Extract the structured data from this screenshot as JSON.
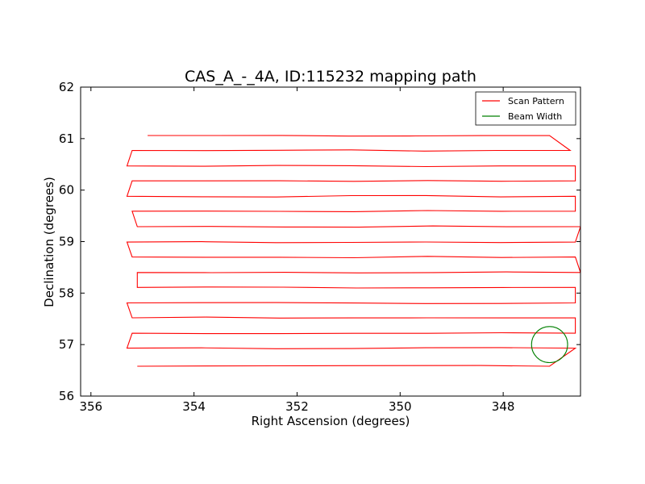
{
  "chart_data": {
    "type": "line",
    "title": "CAS_A_-_4A, ID:115232 mapping path",
    "xlabel": "Right Ascension (degrees)",
    "ylabel": "Declination (degrees)",
    "xlim": [
      356.2,
      346.5
    ],
    "ylim": [
      56,
      62
    ],
    "xticks": [
      356,
      354,
      352,
      350,
      348
    ],
    "xtick_labels": [
      "356",
      "354",
      "352",
      "350",
      "348"
    ],
    "yticks": [
      56,
      57,
      58,
      59,
      60,
      61,
      62
    ],
    "ytick_labels": [
      "56",
      "57",
      "58",
      "59",
      "60",
      "61",
      "62"
    ],
    "grid": false,
    "legend": {
      "position": "top-right",
      "entries": [
        {
          "label": "Scan Pattern",
          "color": "#ff0000"
        },
        {
          "label": "Beam Width",
          "color": "#008000"
        }
      ]
    },
    "series": [
      {
        "name": "Scan Pattern",
        "color": "#ff0000",
        "row_spacing_deg": 0.3,
        "row_declinations": [
          61.06,
          60.77,
          60.47,
          60.18,
          59.88,
          59.59,
          59.29,
          58.99,
          58.7,
          58.4,
          58.11,
          57.81,
          57.52,
          57.22,
          56.93,
          56.58
        ],
        "row_ra_left": [
          354.9,
          355.2,
          355.3,
          355.2,
          355.3,
          355.2,
          355.1,
          355.3,
          355.2,
          355.1,
          355.1,
          355.3,
          355.2,
          355.2,
          355.3,
          355.1
        ],
        "row_ra_right": [
          347.1,
          346.7,
          346.6,
          346.6,
          346.6,
          346.6,
          346.5,
          346.6,
          346.6,
          346.5,
          346.6,
          346.6,
          346.6,
          346.6,
          346.6,
          347.1
        ]
      },
      {
        "name": "Beam Width",
        "color": "#008000",
        "center_ra": 347.1,
        "center_dec": 57.0,
        "radius_deg": 0.35
      }
    ]
  }
}
